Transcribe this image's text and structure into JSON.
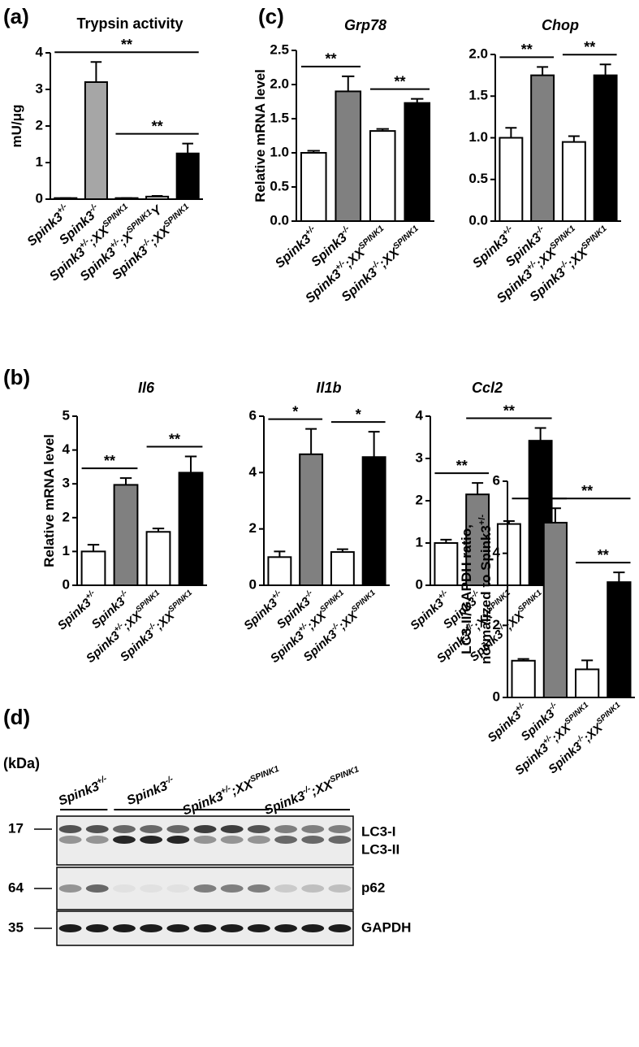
{
  "panel_labels": [
    "(a)",
    "(b)",
    "(c)",
    "(d)"
  ],
  "chart_data": [
    {
      "type": "bar",
      "title": "Trypsin activity",
      "title_italic": false,
      "ylabel": [
        [
          "mU/μg"
        ]
      ],
      "categories": [
        [
          "Spink3",
          "+/-"
        ],
        [
          "Spink3",
          "-/-"
        ],
        [
          "Spink3",
          "+/-",
          ";XX",
          "SPINK1"
        ],
        [
          "Spink3",
          "+/-",
          ";X",
          "SPINK1",
          "Y"
        ],
        [
          "Spink3",
          "-/-",
          ";XX",
          "SPINK1"
        ]
      ],
      "values": [
        0.03,
        3.2,
        0.03,
        0.07,
        1.25
      ],
      "errors": [
        0,
        0.55,
        0,
        0.02,
        0.27
      ],
      "colors": [
        "#ffffff",
        "#a6a6a6",
        "#ffffff",
        "#ffffff",
        "#000000"
      ],
      "ylim": [
        0,
        4
      ],
      "yticks": [
        0,
        1,
        2,
        3,
        4
      ],
      "annotations": [
        {
          "text": "**",
          "from": 0,
          "to": 4
        },
        {
          "text": "**",
          "from": 2,
          "to": 4
        }
      ]
    },
    {
      "type": "bar",
      "title": "Grp78",
      "title_italic": true,
      "ylabel": [
        [
          "Relative mRNA level"
        ]
      ],
      "categories": [
        [
          "Spink3",
          "+/-"
        ],
        [
          "Spink3",
          "-/-"
        ],
        [
          "Spink3",
          "+/-",
          ";XX",
          "SPINK1"
        ],
        [
          "Spink3",
          "-/-",
          ";XX",
          "SPINK1"
        ]
      ],
      "values": [
        1.0,
        1.9,
        1.32,
        1.73
      ],
      "errors": [
        0.03,
        0.22,
        0.03,
        0.06
      ],
      "colors": [
        "#ffffff",
        "#808080",
        "#ffffff",
        "#000000"
      ],
      "ylim": [
        0,
        2.5
      ],
      "yticks": [
        {
          "value": 0,
          "label": "0.0"
        },
        0.5,
        {
          "value": 1,
          "label": "1.0"
        },
        1.5,
        {
          "value": 2,
          "label": "2.0"
        },
        2.5
      ],
      "annotations": [
        {
          "text": "**",
          "from": 0,
          "to": 1
        },
        {
          "text": "**",
          "from": 2,
          "to": 3
        }
      ]
    },
    {
      "type": "bar",
      "title": "Chop",
      "title_italic": true,
      "ylabel": [],
      "categories": [
        [
          "Spink3",
          "+/-"
        ],
        [
          "Spink3",
          "-/-"
        ],
        [
          "Spink3",
          "+/-",
          ";XX",
          "SPINK1"
        ],
        [
          "Spink3",
          "-/-",
          ";XX",
          "SPINK1"
        ]
      ],
      "values": [
        1.0,
        1.75,
        0.95,
        1.75
      ],
      "errors": [
        0.12,
        0.1,
        0.07,
        0.13
      ],
      "colors": [
        "#ffffff",
        "#808080",
        "#ffffff",
        "#000000"
      ],
      "ylim": [
        0,
        2
      ],
      "yticks": [
        {
          "value": 0,
          "label": "0.0"
        },
        0.5,
        {
          "value": 1,
          "label": "1.0"
        },
        1.5,
        {
          "value": 2,
          "label": "2.0"
        }
      ],
      "annotations": [
        {
          "text": "**",
          "from": 0,
          "to": 1
        },
        {
          "text": "**",
          "from": 2,
          "to": 3
        }
      ]
    },
    {
      "type": "bar",
      "title": "Il6",
      "title_italic": true,
      "ylabel": [
        [
          "Relative mRNA level"
        ]
      ],
      "categories": [
        [
          "Spink3",
          "+/-"
        ],
        [
          "Spink3",
          "-/-"
        ],
        [
          "Spink3",
          "+/-",
          ";XX",
          "SPINK1"
        ],
        [
          "Spink3",
          "-/-",
          ";XX",
          "SPINK1"
        ]
      ],
      "values": [
        1.0,
        2.97,
        1.58,
        3.33
      ],
      "errors": [
        0.2,
        0.2,
        0.1,
        0.48
      ],
      "colors": [
        "#ffffff",
        "#808080",
        "#ffffff",
        "#000000"
      ],
      "ylim": [
        0,
        5
      ],
      "yticks": [
        0,
        1,
        2,
        3,
        4,
        5
      ],
      "annotations": [
        {
          "text": "**",
          "from": 0,
          "to": 1
        },
        {
          "text": "**",
          "from": 2,
          "to": 3
        }
      ]
    },
    {
      "type": "bar",
      "title": "Il1b",
      "title_italic": true,
      "ylabel": [],
      "categories": [
        [
          "Spink3",
          "+/-"
        ],
        [
          "Spink3",
          "-/-"
        ],
        [
          "Spink3",
          "+/-",
          ";XX",
          "SPINK1"
        ],
        [
          "Spink3",
          "-/-",
          ";XX",
          "SPINK1"
        ]
      ],
      "values": [
        1.0,
        4.65,
        1.18,
        4.55
      ],
      "errors": [
        0.2,
        0.9,
        0.1,
        0.9
      ],
      "colors": [
        "#ffffff",
        "#808080",
        "#ffffff",
        "#000000"
      ],
      "ylim": [
        0,
        6
      ],
      "yticks": [
        0,
        2,
        4,
        6
      ],
      "annotations": [
        {
          "text": "*",
          "from": 0,
          "to": 1
        },
        {
          "text": "*",
          "from": 2,
          "to": 3
        }
      ]
    },
    {
      "type": "bar",
      "title": "Ccl2",
      "title_italic": true,
      "ylabel": [],
      "categories": [
        [
          "Spink3",
          "+/-"
        ],
        [
          "Spink3",
          "-/-"
        ],
        [
          "Spink3",
          "+/-",
          ";XX",
          "SPINK1"
        ],
        [
          "Spink3",
          "-/-",
          ";XX",
          "SPINK1"
        ]
      ],
      "values": [
        1.0,
        2.15,
        1.45,
        3.42
      ],
      "errors": [
        0.08,
        0.27,
        0.07,
        0.3
      ],
      "colors": [
        "#ffffff",
        "#808080",
        "#ffffff",
        "#000000"
      ],
      "ylim": [
        0,
        4
      ],
      "yticks": [
        0,
        1,
        2,
        3,
        4
      ],
      "annotations": [
        {
          "text": "**",
          "from": 0,
          "to": 1
        },
        {
          "text": "**",
          "from": 1,
          "to": 3
        }
      ]
    },
    {
      "type": "bar",
      "title": null,
      "title_italic": false,
      "ylabel": [
        [
          "LC3-II/GAPDH ratio,"
        ],
        [
          "normalized to Spink3",
          "+/-"
        ]
      ],
      "categories": [
        [
          "Spink3",
          "+/-"
        ],
        [
          "Spink3",
          "-/-"
        ],
        [
          "Spink3",
          "+/-",
          ";XX",
          "SPINK1"
        ],
        [
          "Spink3",
          "-/-",
          ";XX",
          "SPINK1"
        ]
      ],
      "values": [
        1.02,
        4.85,
        0.78,
        3.2
      ],
      "errors": [
        0.05,
        0.4,
        0.25,
        0.27
      ],
      "colors": [
        "#ffffff",
        "#808080",
        "#ffffff",
        "#000000"
      ],
      "ylim": [
        0,
        6
      ],
      "yticks": [
        0,
        2,
        4,
        6
      ],
      "annotations": [
        {
          "text": "**",
          "from": 0,
          "to": 1
        },
        {
          "text": "**",
          "from": 1,
          "to": 3
        },
        {
          "text": "**",
          "from": 2,
          "to": 3
        }
      ]
    }
  ],
  "blot": {
    "unit": "(kDa)",
    "markers": [
      "17",
      "64",
      "35"
    ],
    "groups": [
      [
        "Spink3",
        "+/-"
      ],
      [
        "Spink3",
        "-/-"
      ],
      [
        "Spink3",
        "+/-",
        ";XX",
        "SPINK1"
      ],
      [
        "Spink3",
        "-/-",
        ";XX",
        "SPINK1"
      ]
    ],
    "band_labels": [
      "LC3-I",
      "LC3-II",
      "p62",
      "GAPDH"
    ]
  }
}
